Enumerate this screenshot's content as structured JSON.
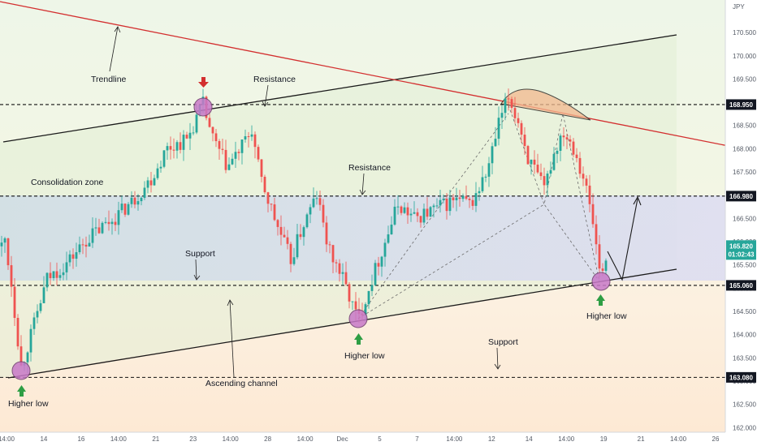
{
  "chart_data": {
    "type": "candlestick",
    "currency": "JPY",
    "x_tick_labels": [
      "14:00",
      "14",
      "16",
      "14:00",
      "21",
      "23",
      "14:00",
      "28",
      "14:00",
      "Dec",
      "5",
      "7",
      "14:00",
      "12",
      "14",
      "14:00",
      "19",
      "21",
      "14:00",
      "26"
    ],
    "y_tick_labels": [
      "170.500",
      "170.000",
      "169.500",
      "169.000",
      "168.500",
      "168.000",
      "167.500",
      "167.000",
      "166.500",
      "166.000",
      "165.500",
      "165.000",
      "164.500",
      "164.000",
      "163.500",
      "163.000",
      "162.500",
      "162.000"
    ],
    "ylim": [
      161.9,
      171.2
    ],
    "levels": [
      {
        "value": 168.95,
        "label": "168.950"
      },
      {
        "value": 166.98,
        "label": "166.980"
      },
      {
        "value": 165.06,
        "label": "165.060"
      },
      {
        "value": 163.08,
        "label": "163.080"
      }
    ],
    "current_price_label": "01:02:43",
    "annotations": {
      "trendline": "Trendline",
      "resistance_top": "Resistance",
      "resistance_mid": "Resistance",
      "consolidation": "Consolidation zone",
      "support_mid": "Support",
      "support_low": "Support",
      "ascending_channel": "Ascending channel",
      "higher_low_1": "Higher low",
      "higher_low_2": "Higher low",
      "higher_low_3": "Higher low"
    },
    "colors": {
      "up": "#26a69a",
      "down": "#ef5350",
      "trendline": "#d32f2f",
      "marker": "#c879c8",
      "arrow_up": "#2e9e44",
      "arrow_down": "#d32f2f"
    }
  }
}
